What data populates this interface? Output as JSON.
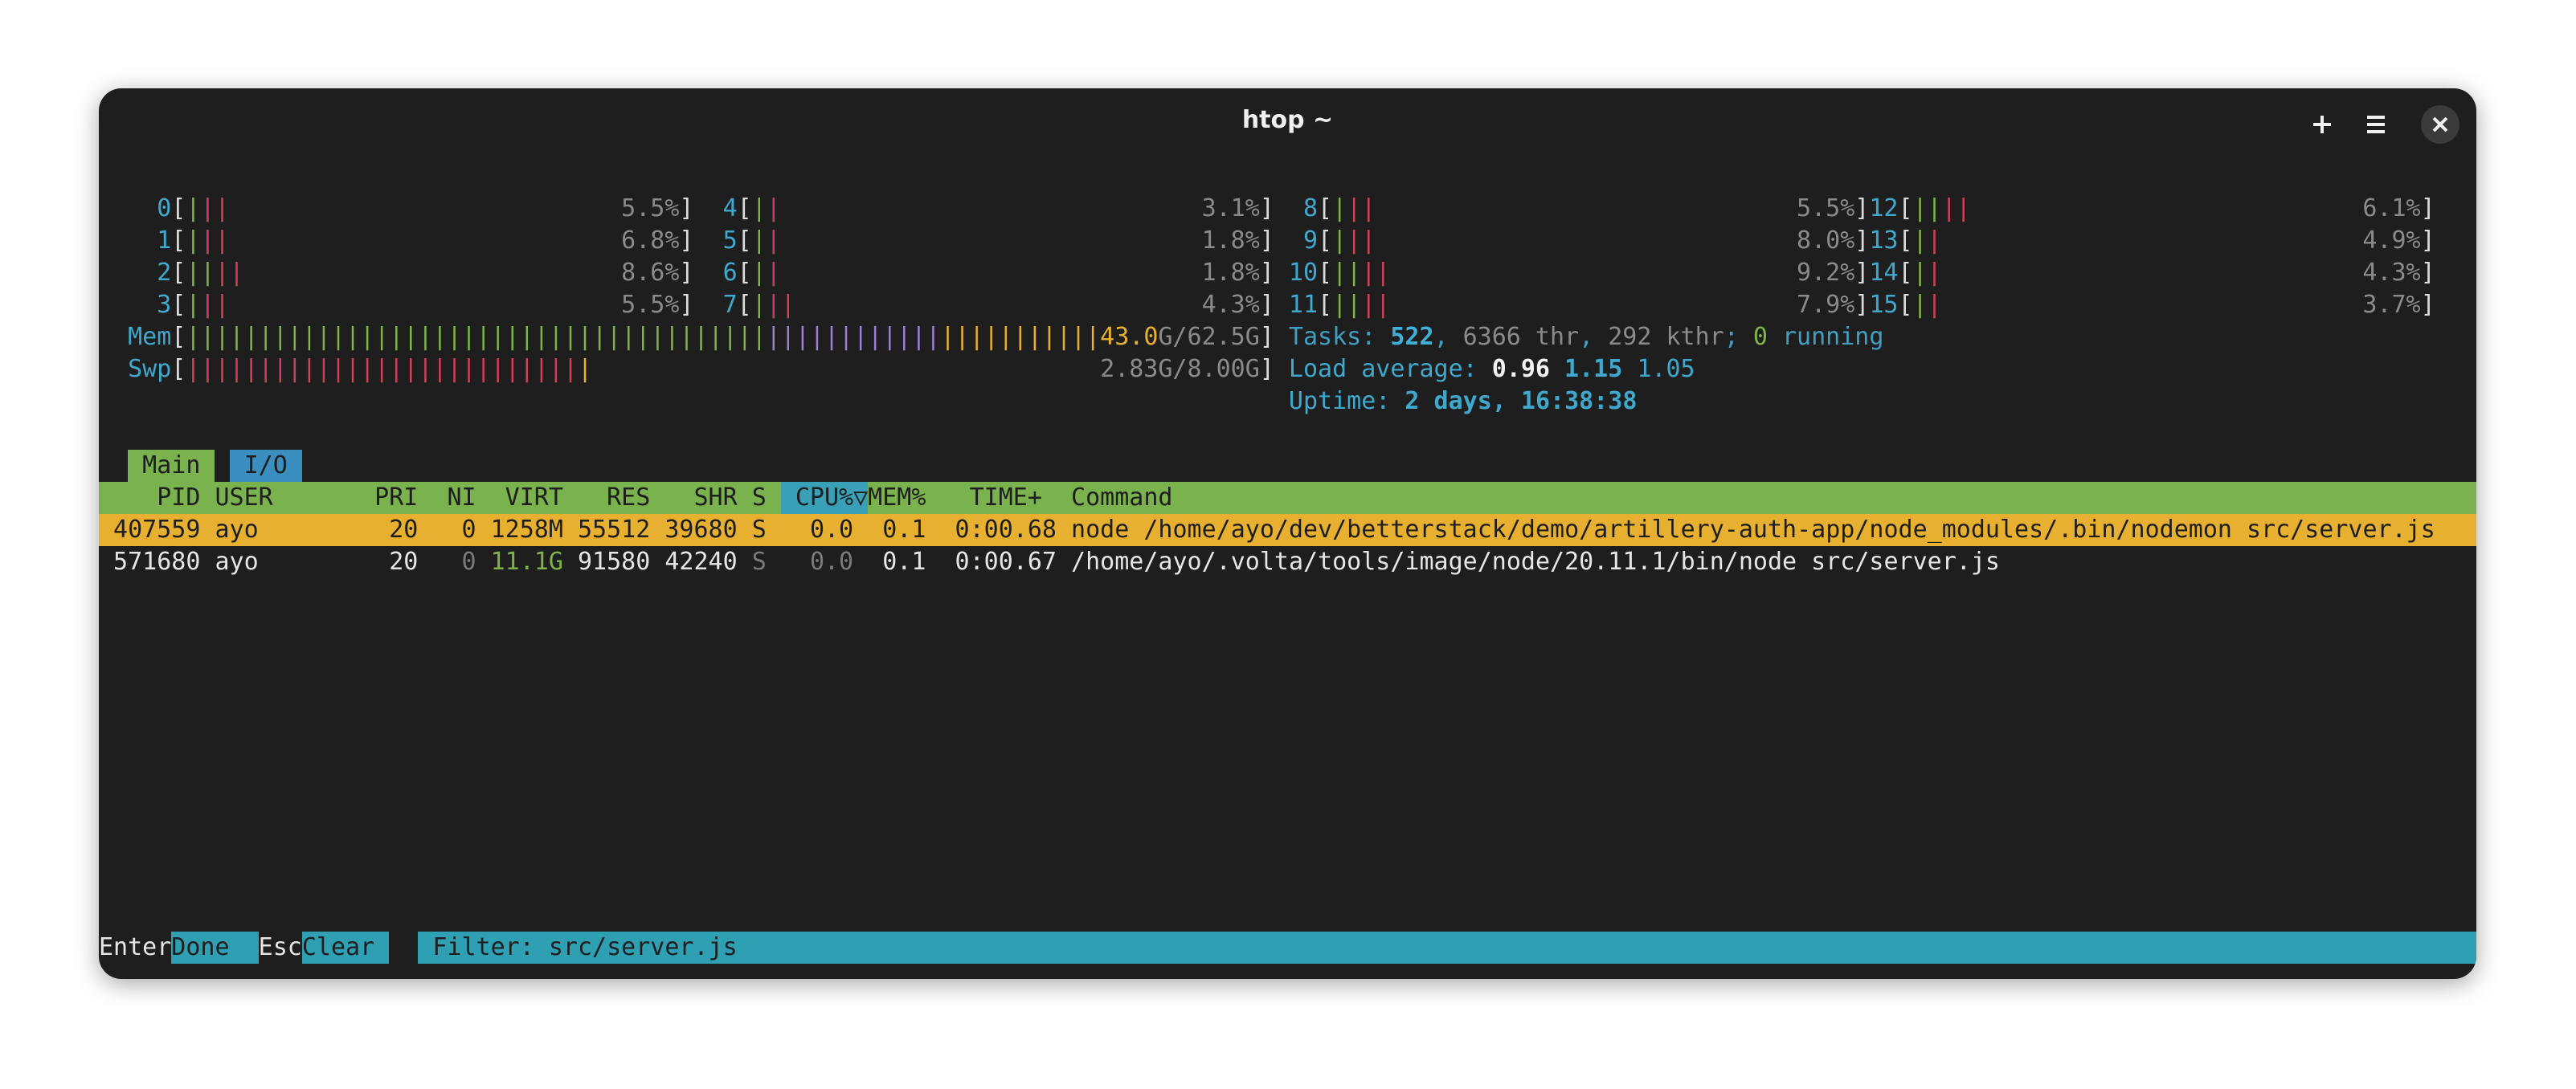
{
  "window": {
    "title": "htop ~"
  },
  "meter_brackets": [
    "[",
    "]"
  ],
  "cpus": [
    {
      "id": "0",
      "bars": [
        {
          "text": "|",
          "color": "#7fb347"
        },
        {
          "text": "||",
          "color": "#d0405a"
        }
      ],
      "percent": "5.5%"
    },
    {
      "id": "1",
      "bars": [
        {
          "text": "|",
          "color": "#7fb347"
        },
        {
          "text": "||",
          "color": "#d0405a"
        }
      ],
      "percent": "6.8%"
    },
    {
      "id": "2",
      "bars": [
        {
          "text": "||",
          "color": "#7fb347"
        },
        {
          "text": "||",
          "color": "#d0405a"
        }
      ],
      "percent": "8.6%"
    },
    {
      "id": "3",
      "bars": [
        {
          "text": "|",
          "color": "#7fb347"
        },
        {
          "text": "||",
          "color": "#d0405a"
        }
      ],
      "percent": "5.5%"
    },
    {
      "id": "4",
      "bars": [
        {
          "text": "|",
          "color": "#7fb347"
        },
        {
          "text": "|",
          "color": "#d0405a"
        }
      ],
      "percent": "3.1%"
    },
    {
      "id": "5",
      "bars": [
        {
          "text": "|",
          "color": "#7fb347"
        },
        {
          "text": "|",
          "color": "#d0405a"
        }
      ],
      "percent": "1.8%"
    },
    {
      "id": "6",
      "bars": [
        {
          "text": "|",
          "color": "#7fb347"
        },
        {
          "text": "|",
          "color": "#d0405a"
        }
      ],
      "percent": "1.8%"
    },
    {
      "id": "7",
      "bars": [
        {
          "text": "|",
          "color": "#7fb347"
        },
        {
          "text": "||",
          "color": "#d0405a"
        }
      ],
      "percent": "4.3%"
    },
    {
      "id": "8",
      "bars": [
        {
          "text": "|",
          "color": "#7fb347"
        },
        {
          "text": "||",
          "color": "#d0405a"
        }
      ],
      "percent": "5.5%"
    },
    {
      "id": "9",
      "bars": [
        {
          "text": "|",
          "color": "#7fb347"
        },
        {
          "text": "||",
          "color": "#d0405a"
        }
      ],
      "percent": "8.0%"
    },
    {
      "id": "10",
      "bars": [
        {
          "text": "||",
          "color": "#7fb347"
        },
        {
          "text": "||",
          "color": "#d0405a"
        }
      ],
      "percent": "9.2%"
    },
    {
      "id": "11",
      "bars": [
        {
          "text": "||",
          "color": "#7fb347"
        },
        {
          "text": "||",
          "color": "#d0405a"
        }
      ],
      "percent": "7.9%"
    },
    {
      "id": "12",
      "bars": [
        {
          "text": "||",
          "color": "#7fb347"
        },
        {
          "text": "||",
          "color": "#d0405a"
        }
      ],
      "percent": "6.1%"
    },
    {
      "id": "13",
      "bars": [
        {
          "text": "|",
          "color": "#7fb347"
        },
        {
          "text": "|",
          "color": "#d0405a"
        }
      ],
      "percent": "4.9%"
    },
    {
      "id": "14",
      "bars": [
        {
          "text": "|",
          "color": "#7fb347"
        },
        {
          "text": "|",
          "color": "#d0405a"
        }
      ],
      "percent": "4.3%"
    },
    {
      "id": "15",
      "bars": [
        {
          "text": "|",
          "color": "#7fb347"
        },
        {
          "text": "|",
          "color": "#d0405a"
        }
      ],
      "percent": "3.7%"
    }
  ],
  "memory": {
    "label": "Mem",
    "bars": [
      {
        "text": "||||||||||||||||||||||||||||||||||||||||",
        "color": "#7fb347"
      },
      {
        "text": "||||||||||||",
        "color": "#9b7fd0"
      },
      {
        "text": "|||||||||||",
        "color": "#e8b030"
      }
    ],
    "used": "43.0",
    "rest": "G/62.5G"
  },
  "swap": {
    "label": "Swp",
    "bars": [
      {
        "text": "|||||||||||||||||||||||||||",
        "color": "#d0405a"
      },
      {
        "text": "|",
        "color": "#e8b030"
      }
    ],
    "value": "2.83G/8.00G"
  },
  "tasks": [
    {
      "text": "Tasks: ",
      "color": "#3f9fc0"
    },
    {
      "text": "522",
      "color": "#3fb0d6",
      "bold": true
    },
    {
      "text": ", ",
      "color": "#3f9fc0"
    },
    {
      "text": "6366 thr",
      "color": "#8a8a8a"
    },
    {
      "text": ", ",
      "color": "#3f9fc0"
    },
    {
      "text": "292 kthr",
      "color": "#8a8a8a"
    },
    {
      "text": "; ",
      "color": "#3f9fc0"
    },
    {
      "text": "0",
      "color": "#7fb347"
    },
    {
      "text": " running",
      "color": "#3f9fc0"
    }
  ],
  "load": {
    "label": "Load average:",
    "values": [
      "0.96",
      "1.15",
      "1.05"
    ]
  },
  "uptime": {
    "label": "Uptime:",
    "value": "2 days, 16:38:38"
  },
  "tabs": [
    "Main",
    "I/O"
  ],
  "table": {
    "header": [
      "PID",
      "USER",
      "PRI",
      "NI",
      "VIRT",
      "RES",
      "SHR",
      "S",
      "CPU%▽",
      "MEM%",
      "TIME+",
      "Command"
    ],
    "rows": [
      [
        "407559",
        "ayo",
        "20",
        "0",
        "1258M",
        "55512",
        "39680",
        "S",
        "0.0",
        "0.1",
        "0:00.68",
        "node /home/ayo/dev/betterstack/demo/artillery-auth-app/node_modules/.bin/nodemon src/server.js"
      ],
      [
        "571680",
        "ayo",
        "20",
        "0",
        "11.1G",
        "91580",
        "42240",
        "S",
        "0.0",
        "0.1",
        "0:00.67",
        "/home/ayo/.volta/tools/image/node/20.11.1/bin/node src/server.js"
      ]
    ]
  },
  "footer": {
    "keys": [
      {
        "key": "Enter",
        "action": "Done"
      },
      {
        "key": "Esc",
        "action": "Clear"
      }
    ],
    "filter_label": "Filter:",
    "filter_value": "src/server.js"
  }
}
